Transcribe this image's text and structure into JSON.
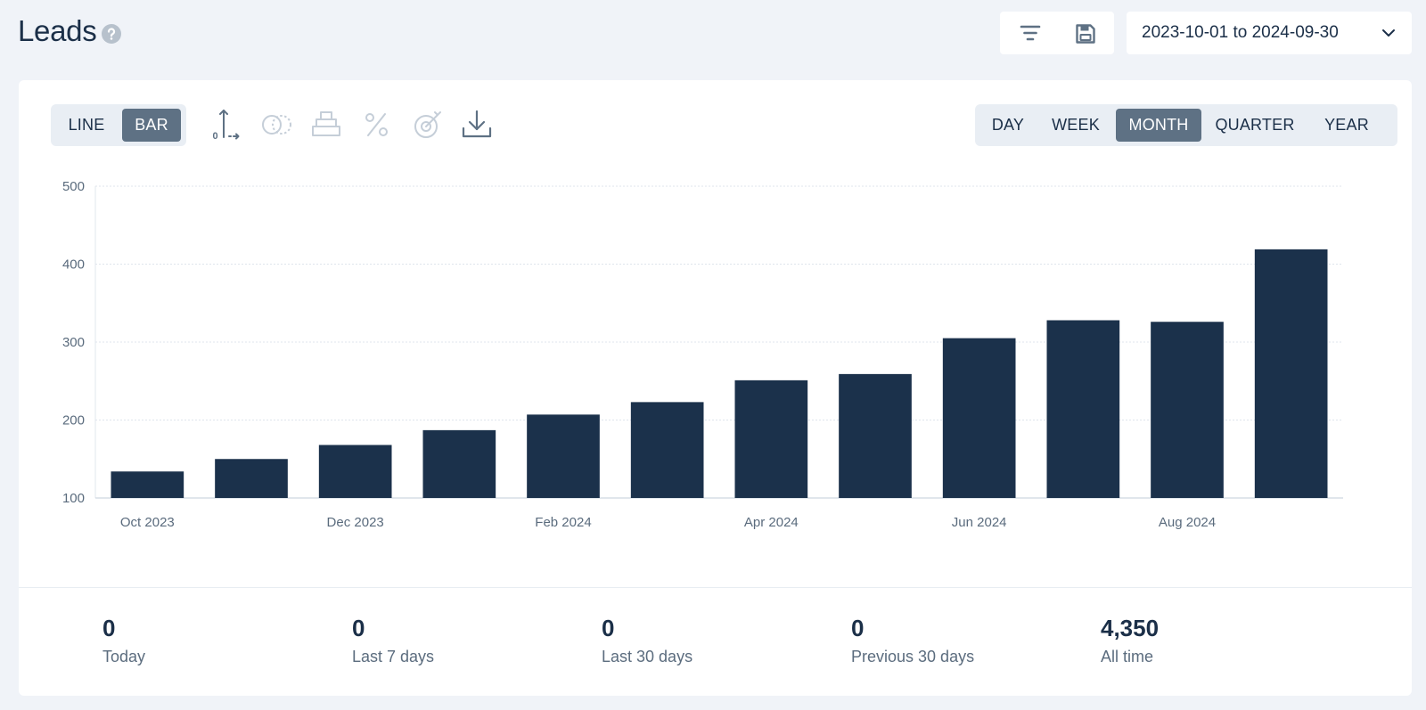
{
  "header": {
    "title": "Leads",
    "date_range": "2023-10-01 to 2024-09-30",
    "icons": [
      "help-icon",
      "filter-icon",
      "save-icon",
      "chevron-down-icon"
    ]
  },
  "chart_controls": {
    "chart_types": [
      "LINE",
      "BAR"
    ],
    "active_chart_type": "BAR",
    "tools": [
      {
        "icon": "axis-zero-icon",
        "enabled": true
      },
      {
        "icon": "compare-icon",
        "enabled": false
      },
      {
        "icon": "stack-icon",
        "enabled": false
      },
      {
        "icon": "percent-icon",
        "enabled": false
      },
      {
        "icon": "goal-target-icon",
        "enabled": false
      },
      {
        "icon": "download-icon",
        "enabled": true
      }
    ],
    "periods": [
      "DAY",
      "WEEK",
      "MONTH",
      "QUARTER",
      "YEAR"
    ],
    "active_period": "MONTH"
  },
  "chart_data": {
    "type": "bar",
    "categories": [
      "Oct 2023",
      "Nov 2023",
      "Dec 2023",
      "Jan 2024",
      "Feb 2024",
      "Mar 2024",
      "Apr 2024",
      "May 2024",
      "Jun 2024",
      "Jul 2024",
      "Aug 2024",
      "Sep 2024"
    ],
    "values": [
      134,
      150,
      168,
      187,
      207,
      223,
      251,
      259,
      305,
      328,
      326,
      419
    ],
    "x_tick_labels": [
      "Oct 2023",
      "Dec 2023",
      "Feb 2024",
      "Apr 2024",
      "Jun 2024",
      "Aug 2024"
    ],
    "y_ticks": [
      100,
      200,
      300,
      400,
      500
    ],
    "ylim": [
      100,
      500
    ],
    "grid": true,
    "bar_color": "#1b314b"
  },
  "stats": [
    {
      "value": "0",
      "label": "Today"
    },
    {
      "value": "0",
      "label": "Last 7 days"
    },
    {
      "value": "0",
      "label": "Last 30 days"
    },
    {
      "value": "0",
      "label": "Previous 30 days"
    },
    {
      "value": "4,350",
      "label": "All time"
    }
  ],
  "colors": {
    "background": "#f0f3f8",
    "card": "#ffffff",
    "text_primary": "#1b2f48",
    "active_segment": "#5e7184",
    "segment_bg": "#e9eef4",
    "icon_enabled": "#5e7184",
    "icon_disabled": "#c5ced8"
  }
}
